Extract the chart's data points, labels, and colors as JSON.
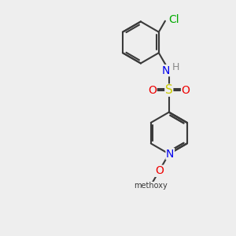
{
  "bg_color": "#eeeeee",
  "bond_color": "#3a3a3a",
  "bond_width": 1.5,
  "atom_colors": {
    "Cl": "#00aa00",
    "N": "#0000ee",
    "H": "#888888",
    "S": "#cccc00",
    "O": "#ee0000",
    "C": "#3a3a3a"
  },
  "font_size": 9,
  "fig_size": [
    3.0,
    3.0
  ],
  "dpi": 100
}
